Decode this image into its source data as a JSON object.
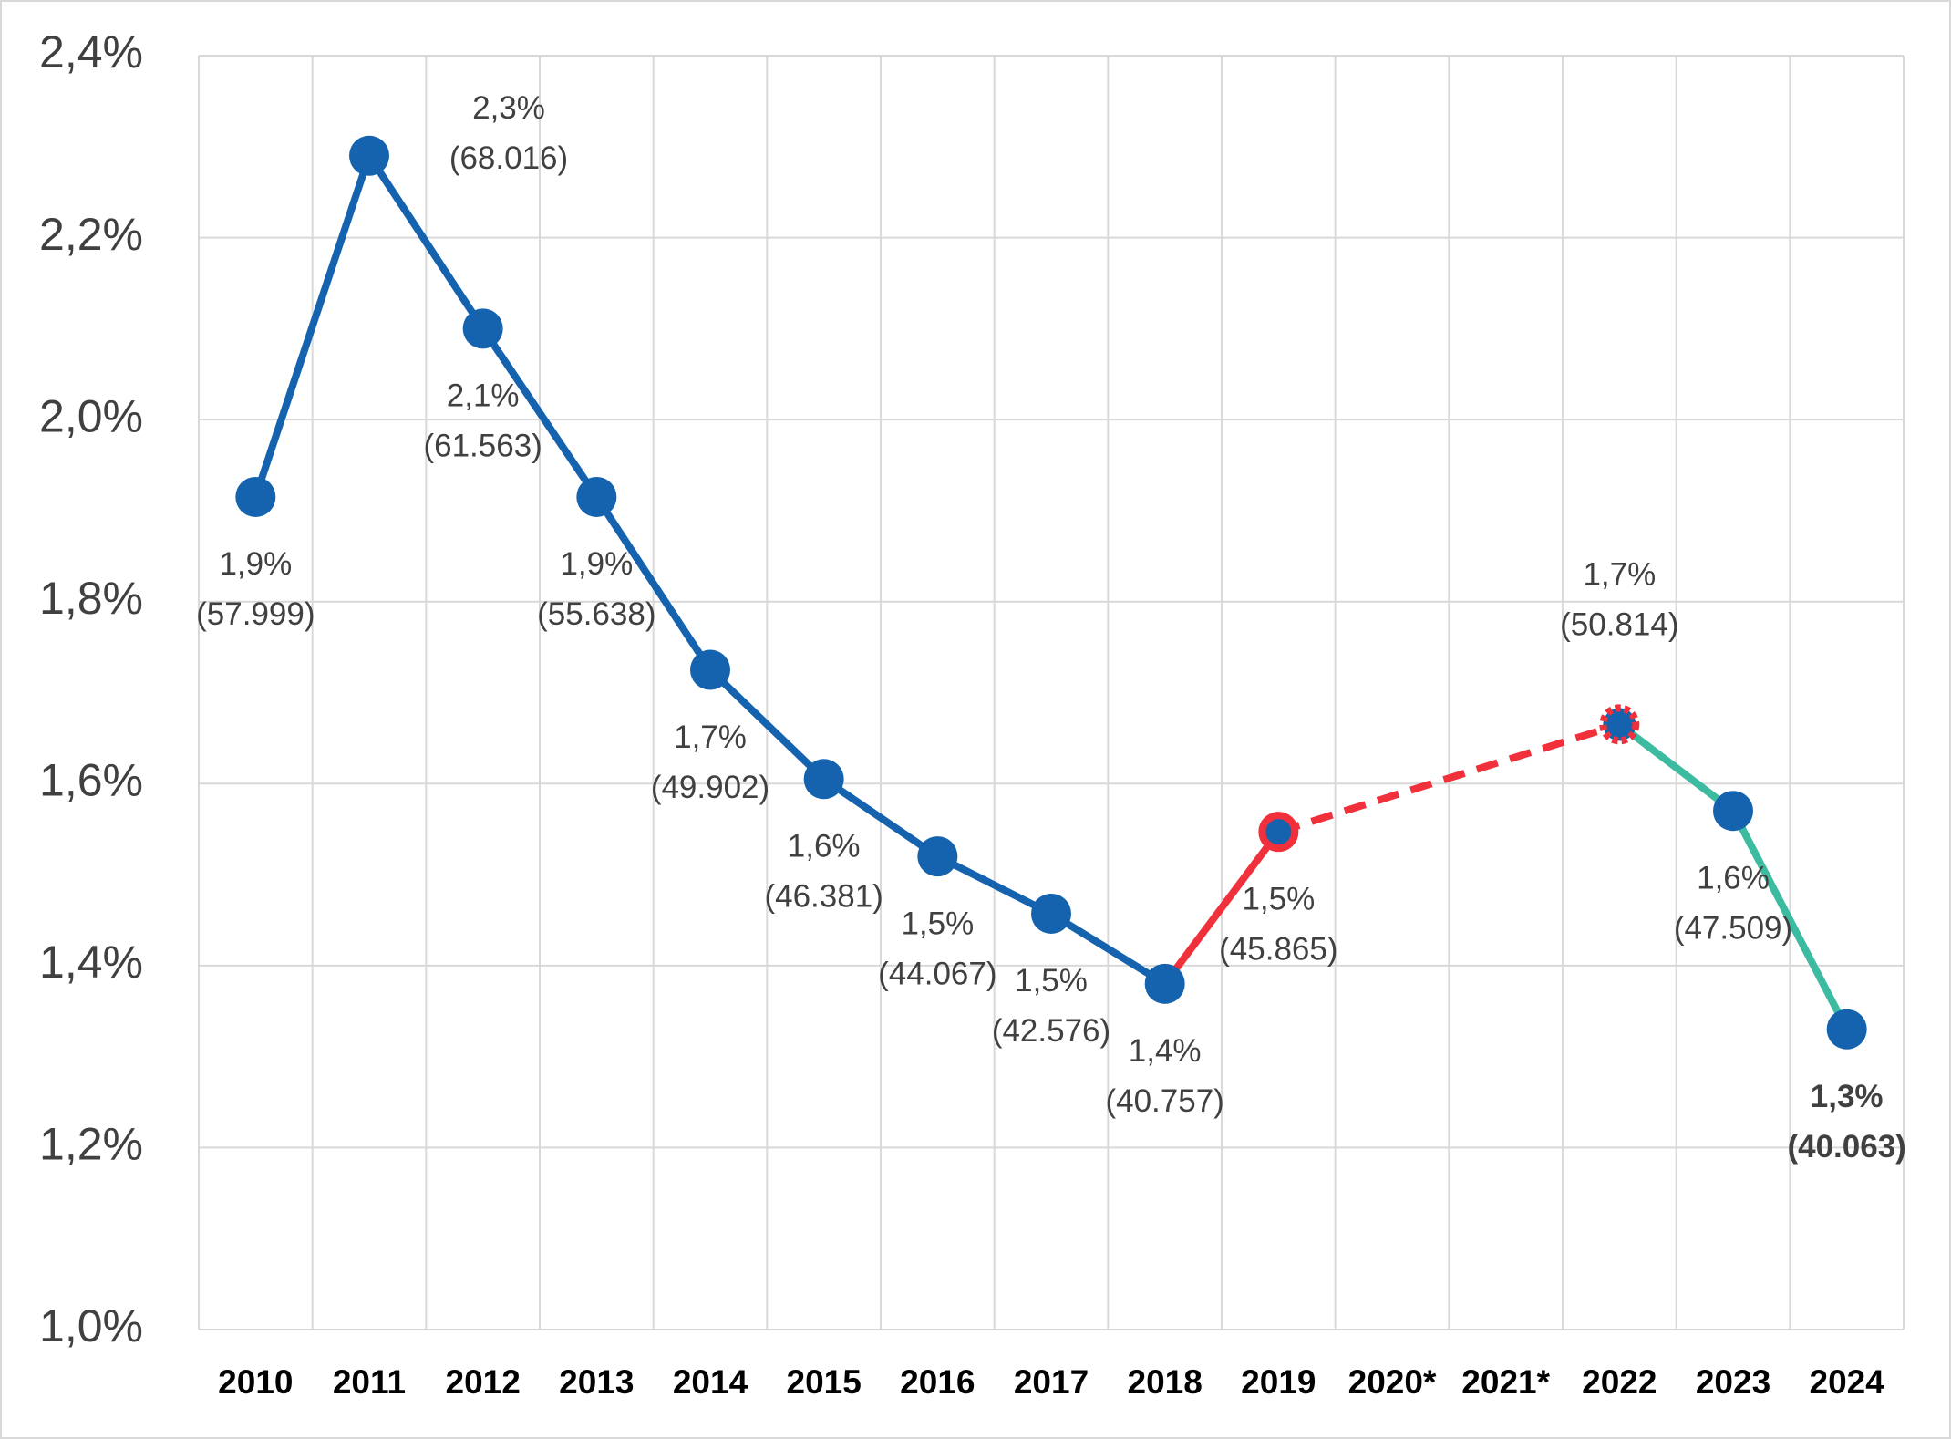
{
  "chart_data": {
    "type": "line",
    "categories": [
      "2010",
      "2011",
      "2012",
      "2013",
      "2014",
      "2015",
      "2016",
      "2017",
      "2018",
      "2019",
      "2020*",
      "2021*",
      "2022",
      "2023",
      "2024"
    ],
    "ylim": [
      1.0,
      2.4
    ],
    "yticks": [
      {
        "value": 1.0,
        "label": "1,0%"
      },
      {
        "value": 1.2,
        "label": "1,2%"
      },
      {
        "value": 1.4,
        "label": "1,4%"
      },
      {
        "value": 1.6,
        "label": "1,6%"
      },
      {
        "value": 1.8,
        "label": "1,8%"
      },
      {
        "value": 2.0,
        "label": "2,0%"
      },
      {
        "value": 2.2,
        "label": "2,2%"
      },
      {
        "value": 2.4,
        "label": "2,4%"
      }
    ],
    "grid": true,
    "series": [
      {
        "color": "#1563ae",
        "dashed": false,
        "markers": false,
        "values": [
          1.915,
          2.29,
          2.1,
          1.915,
          1.725,
          1.605,
          1.52,
          1.457,
          1.38,
          null,
          null,
          null,
          null,
          null,
          null
        ]
      },
      {
        "color": "#f0313c",
        "dashed": false,
        "markers": false,
        "values": [
          null,
          null,
          null,
          null,
          null,
          null,
          null,
          null,
          1.38,
          1.547,
          null,
          null,
          null,
          null,
          null
        ]
      },
      {
        "color": "#f0313c",
        "dashed": true,
        "connect_gaps": true,
        "markers": false,
        "values": [
          null,
          null,
          null,
          null,
          null,
          null,
          null,
          null,
          null,
          1.547,
          null,
          null,
          1.665,
          null,
          null
        ]
      },
      {
        "color": "#3dbba1",
        "dashed": false,
        "markers": false,
        "values": [
          null,
          null,
          null,
          null,
          null,
          null,
          null,
          null,
          null,
          null,
          null,
          null,
          1.665,
          1.57,
          1.33
        ]
      },
      {
        "color": "#1563ae",
        "line": false,
        "markers": true,
        "values": [
          1.915,
          2.29,
          2.1,
          1.915,
          1.725,
          1.605,
          1.52,
          1.457,
          1.38,
          1.547,
          null,
          null,
          1.665,
          1.57,
          1.33
        ],
        "marker_edge_colors": [
          null,
          null,
          null,
          null,
          null,
          null,
          null,
          null,
          null,
          "#f0313c",
          null,
          null,
          "#f0313c",
          null,
          null
        ],
        "marker_edge_styles": [
          null,
          null,
          null,
          null,
          null,
          null,
          null,
          null,
          null,
          "solid",
          null,
          null,
          "dashed",
          null,
          null
        ],
        "value_labels": [
          "1,9%",
          "2,3%",
          "2,1%",
          "1,9%",
          "1,7%",
          "1,6%",
          "1,5%",
          "1,5%",
          "1,4%",
          "1,5%",
          null,
          null,
          "1,7%",
          "1,6%",
          "1,3%"
        ],
        "sub_labels": [
          "(57.999)",
          "(68.016)",
          "(61.563)",
          "(55.638)",
          "(49.902)",
          "(46.381)",
          "(44.067)",
          "(42.576)",
          "(40.757)",
          "(45.865)",
          null,
          null,
          "(50.814)",
          "(47.509)",
          "(40.063)"
        ],
        "label_positions": [
          "below",
          "right-above",
          "below",
          "below",
          "below",
          "below",
          "below",
          "below",
          "below",
          "below",
          null,
          null,
          "above",
          "below",
          "below"
        ],
        "label_colors": [
          null,
          null,
          null,
          null,
          null,
          null,
          null,
          null,
          null,
          null,
          null,
          null,
          null,
          null,
          "#3dbba1"
        ]
      }
    ]
  }
}
